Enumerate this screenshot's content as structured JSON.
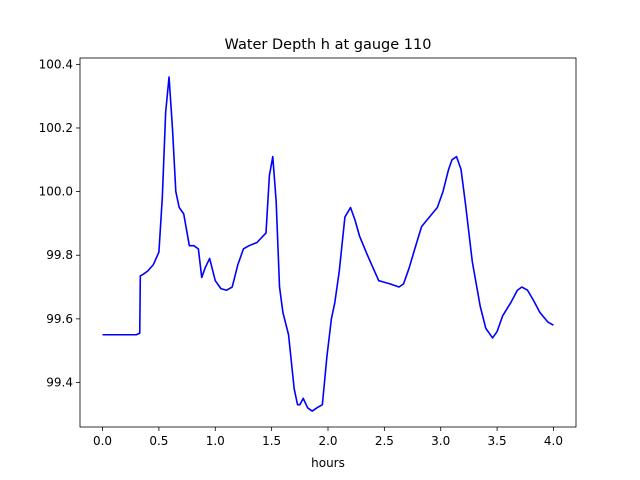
{
  "chart_data": {
    "type": "line",
    "title": "Water Depth h at gauge 110",
    "xlabel": "hours",
    "ylabel": "",
    "xlim": [
      -0.2,
      4.2
    ],
    "ylim": [
      99.26,
      100.42
    ],
    "xticks": [
      0.0,
      0.5,
      1.0,
      1.5,
      2.0,
      2.5,
      3.0,
      3.5,
      4.0
    ],
    "xtick_labels": [
      "0.0",
      "0.5",
      "1.0",
      "1.5",
      "2.0",
      "2.5",
      "3.0",
      "3.5",
      "4.0"
    ],
    "yticks": [
      99.4,
      99.6,
      99.8,
      100.0,
      100.2,
      100.4
    ],
    "ytick_labels": [
      "99.4",
      "99.6",
      "99.8",
      "100.0",
      "100.2",
      "100.4"
    ],
    "grid": false,
    "series": [
      {
        "color": "#0000ff",
        "x": [
          0.0,
          0.1,
          0.2,
          0.3,
          0.33,
          0.335,
          0.36,
          0.4,
          0.45,
          0.5,
          0.53,
          0.56,
          0.59,
          0.62,
          0.65,
          0.68,
          0.72,
          0.77,
          0.81,
          0.85,
          0.88,
          0.91,
          0.95,
          1.0,
          1.05,
          1.1,
          1.15,
          1.2,
          1.25,
          1.3,
          1.37,
          1.45,
          1.48,
          1.51,
          1.54,
          1.57,
          1.6,
          1.65,
          1.7,
          1.73,
          1.75,
          1.78,
          1.82,
          1.86,
          1.9,
          1.95,
          1.99,
          2.03,
          2.06,
          2.1,
          2.15,
          2.2,
          2.24,
          2.28,
          2.35,
          2.45,
          2.55,
          2.63,
          2.67,
          2.72,
          2.77,
          2.83,
          2.9,
          2.97,
          3.02,
          3.07,
          3.1,
          3.14,
          3.18,
          3.22,
          3.28,
          3.35,
          3.4,
          3.46,
          3.5,
          3.55,
          3.62,
          3.68,
          3.72,
          3.77,
          3.82,
          3.88,
          3.95,
          4.0
        ],
        "y": [
          99.55,
          99.55,
          99.55,
          99.55,
          99.555,
          99.735,
          99.74,
          99.75,
          99.77,
          99.81,
          99.98,
          100.25,
          100.36,
          100.2,
          100.0,
          99.95,
          99.93,
          99.83,
          99.83,
          99.82,
          99.73,
          99.76,
          99.79,
          99.72,
          99.695,
          99.69,
          99.7,
          99.77,
          99.82,
          99.83,
          99.84,
          99.87,
          100.05,
          100.11,
          99.97,
          99.7,
          99.62,
          99.55,
          99.38,
          99.33,
          99.33,
          99.35,
          99.32,
          99.31,
          99.32,
          99.33,
          99.48,
          99.6,
          99.65,
          99.75,
          99.92,
          99.95,
          99.91,
          99.86,
          99.8,
          99.72,
          99.71,
          99.7,
          99.71,
          99.76,
          99.82,
          99.89,
          99.92,
          99.95,
          100.0,
          100.07,
          100.1,
          100.11,
          100.07,
          99.96,
          99.78,
          99.64,
          99.57,
          99.54,
          99.56,
          99.61,
          99.65,
          99.69,
          99.7,
          99.69,
          99.66,
          99.62,
          99.59,
          99.58
        ]
      }
    ]
  }
}
